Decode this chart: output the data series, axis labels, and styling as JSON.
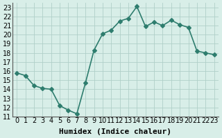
{
  "x": [
    0,
    1,
    2,
    3,
    4,
    5,
    6,
    7,
    8,
    9,
    10,
    11,
    12,
    13,
    14,
    15,
    16,
    17,
    18,
    19,
    20,
    21,
    22,
    23
  ],
  "y": [
    15.8,
    15.5,
    14.4,
    14.1,
    14.0,
    12.2,
    11.7,
    11.3,
    14.7,
    18.3,
    20.1,
    20.5,
    21.5,
    21.8,
    23.1,
    20.9,
    21.4,
    21.0,
    21.6,
    21.1,
    20.8,
    18.2,
    18.0,
    17.8
  ],
  "line_color": "#2e7d6e",
  "marker": "D",
  "marker_size": 3,
  "bg_color": "#d8eee8",
  "grid_color": "#b0cfc8",
  "xlabel": "Humidex (Indice chaleur)",
  "ylim": [
    11,
    23.5
  ],
  "yticks": [
    11,
    12,
    13,
    14,
    15,
    16,
    17,
    18,
    19,
    20,
    21,
    22,
    23
  ],
  "xticks": [
    0,
    1,
    2,
    3,
    4,
    5,
    6,
    7,
    8,
    9,
    10,
    11,
    12,
    13,
    14,
    15,
    16,
    17,
    18,
    19,
    20,
    21,
    22,
    23
  ],
  "xlabel_fontsize": 8,
  "tick_fontsize": 7,
  "line_width": 1.2
}
